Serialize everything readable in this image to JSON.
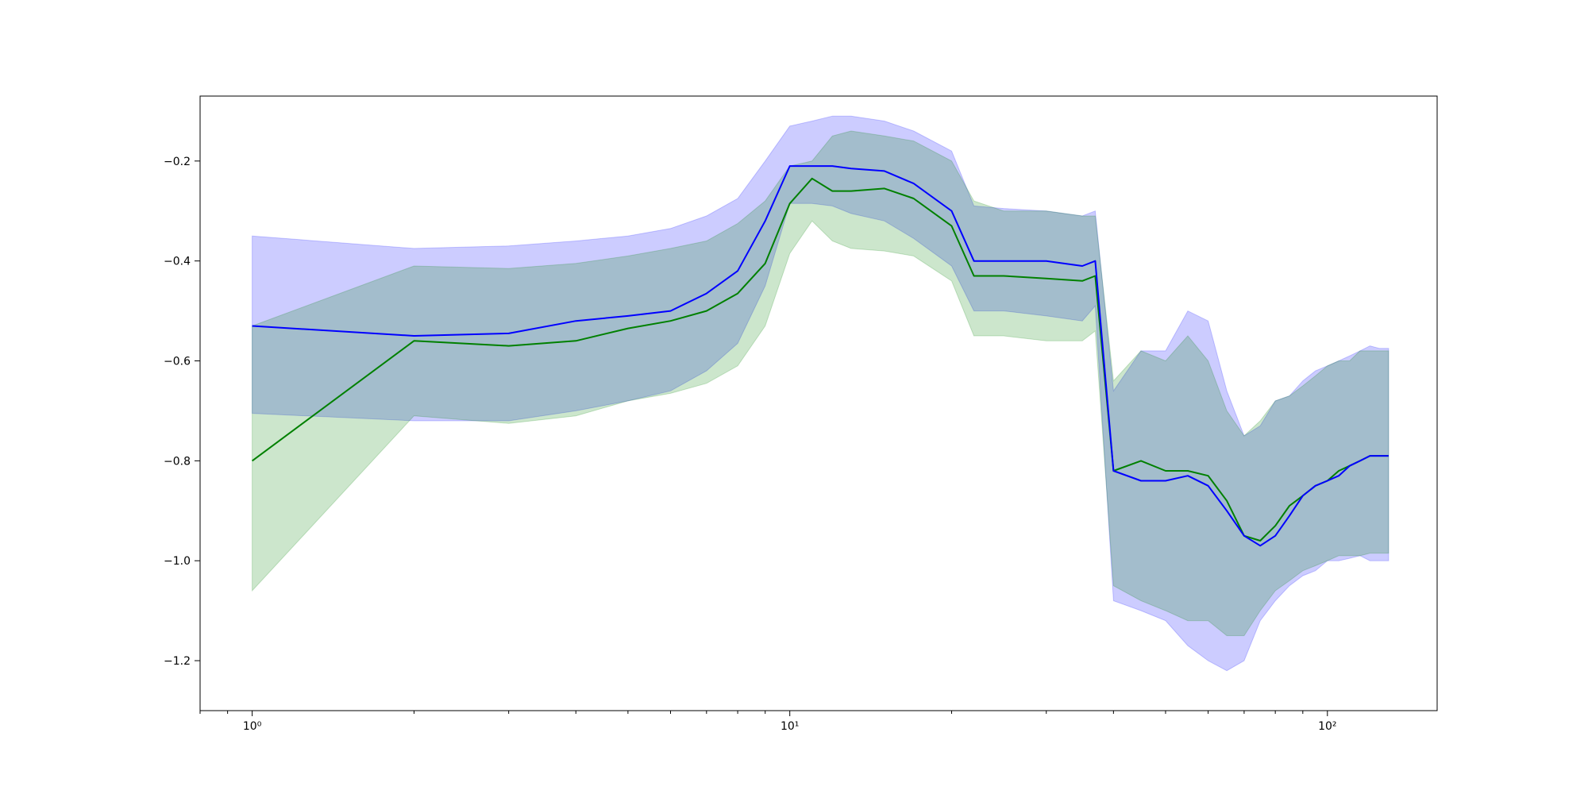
{
  "chart_data": {
    "type": "line",
    "title": "",
    "xlabel": "",
    "ylabel": "",
    "xscale": "log",
    "xlim": [
      0.8,
      160
    ],
    "ylim": [
      -1.3,
      -0.07
    ],
    "grid": false,
    "legend": "none",
    "x_ticks": [
      {
        "value": 1,
        "label": "10⁰"
      },
      {
        "value": 10,
        "label": "10¹"
      },
      {
        "value": 100,
        "label": "10²"
      }
    ],
    "y_ticks": [
      {
        "value": -0.2,
        "label": "−0.2"
      },
      {
        "value": -0.4,
        "label": "−0.4"
      },
      {
        "value": -0.6,
        "label": "−0.6"
      },
      {
        "value": -0.8,
        "label": "−0.8"
      },
      {
        "value": -1.0,
        "label": "−1.0"
      },
      {
        "value": -1.2,
        "label": "−1.2"
      }
    ],
    "x": [
      1,
      2,
      3,
      4,
      5,
      6,
      7,
      8,
      9,
      10,
      11,
      12,
      13,
      15,
      17,
      20,
      22,
      25,
      30,
      35,
      37,
      40,
      45,
      50,
      55,
      60,
      65,
      70,
      75,
      80,
      85,
      90,
      95,
      100,
      105,
      110,
      115,
      120,
      125,
      130
    ],
    "series": [
      {
        "color": "#0000ff",
        "band_color": "#0000ff",
        "band_opacity": 0.2,
        "mean": [
          -0.53,
          -0.55,
          -0.545,
          -0.52,
          -0.51,
          -0.5,
          -0.465,
          -0.42,
          -0.32,
          -0.21,
          -0.21,
          -0.21,
          -0.215,
          -0.22,
          -0.245,
          -0.3,
          -0.4,
          -0.4,
          -0.4,
          -0.41,
          -0.4,
          -0.82,
          -0.84,
          -0.84,
          -0.83,
          -0.85,
          -0.9,
          -0.95,
          -0.97,
          -0.95,
          -0.91,
          -0.87,
          -0.85,
          -0.84,
          -0.83,
          -0.81,
          -0.8,
          -0.79,
          -0.79,
          -0.79
        ],
        "upper": [
          -0.35,
          -0.375,
          -0.37,
          -0.36,
          -0.35,
          -0.335,
          -0.31,
          -0.275,
          -0.2,
          -0.13,
          -0.12,
          -0.11,
          -0.11,
          -0.12,
          -0.14,
          -0.18,
          -0.29,
          -0.295,
          -0.3,
          -0.31,
          -0.3,
          -0.66,
          -0.58,
          -0.58,
          -0.5,
          -0.52,
          -0.66,
          -0.75,
          -0.73,
          -0.68,
          -0.67,
          -0.64,
          -0.62,
          -0.61,
          -0.6,
          -0.59,
          -0.58,
          -0.57,
          -0.575,
          -0.575
        ],
        "lower": [
          -0.705,
          -0.72,
          -0.72,
          -0.7,
          -0.68,
          -0.66,
          -0.62,
          -0.565,
          -0.45,
          -0.285,
          -0.285,
          -0.29,
          -0.305,
          -0.32,
          -0.355,
          -0.41,
          -0.5,
          -0.5,
          -0.51,
          -0.52,
          -0.49,
          -1.08,
          -1.1,
          -1.12,
          -1.17,
          -1.2,
          -1.22,
          -1.2,
          -1.12,
          -1.08,
          -1.05,
          -1.03,
          -1.02,
          -1.0,
          -1.0,
          -0.995,
          -0.99,
          -1.0,
          -1.0,
          -1.0
        ]
      },
      {
        "color": "#008000",
        "band_color": "#008000",
        "band_opacity": 0.2,
        "mean": [
          -0.8,
          -0.56,
          -0.57,
          -0.56,
          -0.535,
          -0.52,
          -0.5,
          -0.465,
          -0.405,
          -0.285,
          -0.235,
          -0.26,
          -0.26,
          -0.255,
          -0.275,
          -0.33,
          -0.43,
          -0.43,
          -0.435,
          -0.44,
          -0.43,
          -0.82,
          -0.8,
          -0.82,
          -0.82,
          -0.83,
          -0.88,
          -0.95,
          -0.96,
          -0.93,
          -0.89,
          -0.87,
          -0.85,
          -0.84,
          -0.82,
          -0.81,
          -0.8,
          -0.79,
          -0.79,
          -0.79
        ],
        "upper": [
          -0.53,
          -0.41,
          -0.415,
          -0.405,
          -0.39,
          -0.375,
          -0.36,
          -0.325,
          -0.28,
          -0.21,
          -0.2,
          -0.15,
          -0.14,
          -0.15,
          -0.16,
          -0.2,
          -0.28,
          -0.3,
          -0.3,
          -0.31,
          -0.31,
          -0.64,
          -0.58,
          -0.6,
          -0.55,
          -0.6,
          -0.7,
          -0.75,
          -0.72,
          -0.68,
          -0.67,
          -0.65,
          -0.63,
          -0.61,
          -0.6,
          -0.6,
          -0.58,
          -0.58,
          -0.58,
          -0.58
        ],
        "lower": [
          -1.06,
          -0.71,
          -0.725,
          -0.71,
          -0.68,
          -0.665,
          -0.645,
          -0.61,
          -0.53,
          -0.385,
          -0.32,
          -0.36,
          -0.375,
          -0.38,
          -0.39,
          -0.44,
          -0.55,
          -0.55,
          -0.56,
          -0.56,
          -0.54,
          -1.05,
          -1.08,
          -1.1,
          -1.12,
          -1.12,
          -1.15,
          -1.15,
          -1.1,
          -1.06,
          -1.04,
          -1.02,
          -1.01,
          -1.0,
          -0.99,
          -0.99,
          -0.99,
          -0.985,
          -0.985,
          -0.985
        ]
      }
    ]
  }
}
